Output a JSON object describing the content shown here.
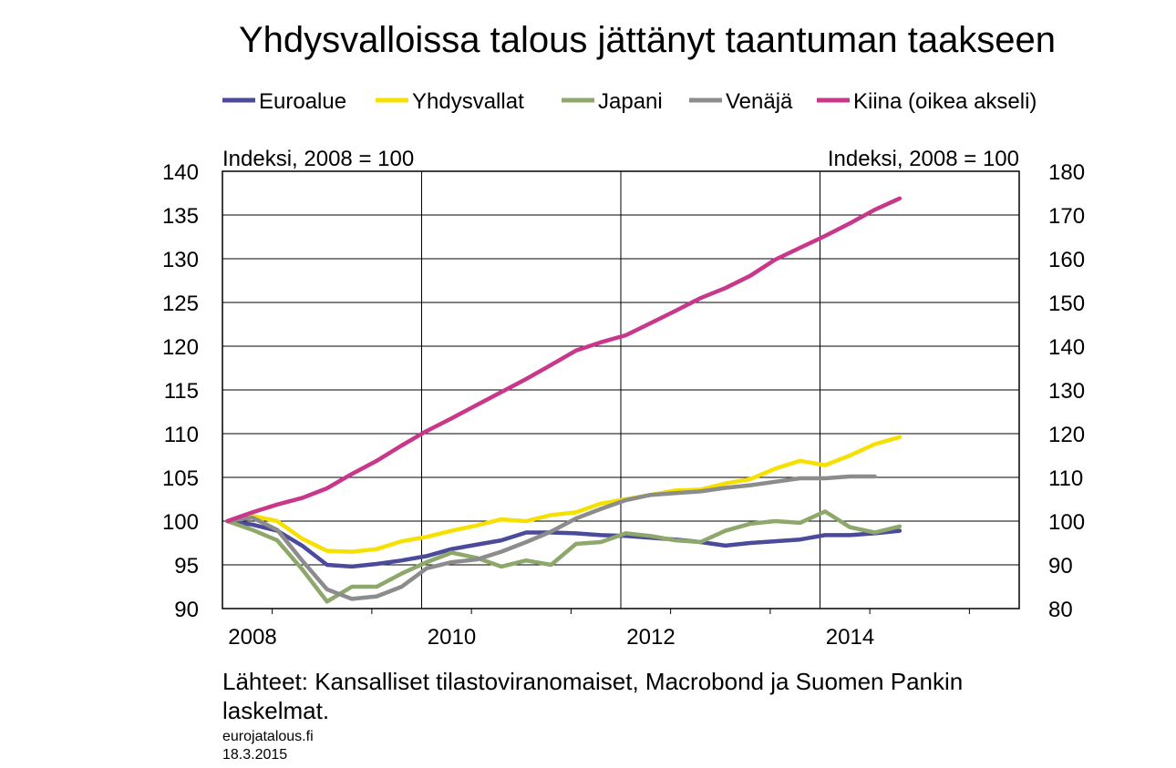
{
  "chart_data": {
    "type": "line",
    "title": "Yhdysvalloissa talous jättänyt taantuman taakseen",
    "left_axis_label": "Indeksi, 2008 = 100",
    "right_axis_label": "Indeksi, 2008 = 100",
    "ylim_left": [
      90,
      140
    ],
    "yticks_left": [
      "90",
      "95",
      "100",
      "105",
      "110",
      "115",
      "120",
      "125",
      "130",
      "135",
      "140"
    ],
    "ylim_right": [
      80,
      180
    ],
    "yticks_right": [
      "80",
      "90",
      "100",
      "110",
      "120",
      "130",
      "140",
      "150",
      "160",
      "170",
      "180"
    ],
    "xlim": [
      2008,
      2016
    ],
    "xtick_labels": [
      "2008",
      "2010",
      "2012",
      "2014"
    ],
    "grid": true,
    "legend_position": "top",
    "series": [
      {
        "name": "Euroalue",
        "color": "#4b4a9b",
        "axis": "left",
        "x": [
          2008.0,
          2008.25,
          2008.5,
          2008.75,
          2009.0,
          2009.25,
          2009.5,
          2009.75,
          2010.0,
          2010.25,
          2010.5,
          2010.75,
          2011.0,
          2011.25,
          2011.5,
          2011.75,
          2012.0,
          2012.25,
          2012.5,
          2012.75,
          2013.0,
          2013.25,
          2013.5,
          2013.75,
          2014.0,
          2014.25,
          2014.5,
          2014.75
        ],
        "values": [
          100.0,
          99.6,
          98.9,
          97.2,
          95.0,
          94.8,
          95.1,
          95.5,
          96.0,
          96.8,
          97.3,
          97.8,
          98.7,
          98.7,
          98.6,
          98.4,
          98.3,
          98.1,
          97.9,
          97.6,
          97.2,
          97.5,
          97.7,
          97.9,
          98.4,
          98.4,
          98.6,
          98.9
        ]
      },
      {
        "name": "Yhdysvallat",
        "color": "#f6e000",
        "axis": "left",
        "x": [
          2008.0,
          2008.25,
          2008.5,
          2008.75,
          2009.0,
          2009.25,
          2009.5,
          2009.75,
          2010.0,
          2010.25,
          2010.5,
          2010.75,
          2011.0,
          2011.25,
          2011.5,
          2011.75,
          2012.0,
          2012.25,
          2012.5,
          2012.75,
          2013.0,
          2013.25,
          2013.5,
          2013.75,
          2014.0,
          2014.25,
          2014.5,
          2014.75
        ],
        "values": [
          100.0,
          100.6,
          100.0,
          98.0,
          96.6,
          96.5,
          96.8,
          97.7,
          98.2,
          98.9,
          99.5,
          100.2,
          100.0,
          100.7,
          101.0,
          102.0,
          102.5,
          103.0,
          103.5,
          103.6,
          104.3,
          104.8,
          106.0,
          106.9,
          106.4,
          107.5,
          108.8,
          109.6
        ]
      },
      {
        "name": "Japani",
        "color": "#8ea86b",
        "axis": "left",
        "x": [
          2008.0,
          2008.25,
          2008.5,
          2008.75,
          2009.0,
          2009.25,
          2009.5,
          2009.75,
          2010.0,
          2010.25,
          2010.5,
          2010.75,
          2011.0,
          2011.25,
          2011.5,
          2011.75,
          2012.0,
          2012.25,
          2012.5,
          2012.75,
          2013.0,
          2013.25,
          2013.5,
          2013.75,
          2014.0,
          2014.25,
          2014.5,
          2014.75
        ],
        "values": [
          100.0,
          99.0,
          97.8,
          94.5,
          90.8,
          92.5,
          92.5,
          94.0,
          95.3,
          96.4,
          95.8,
          94.8,
          95.5,
          95.0,
          97.4,
          97.6,
          98.6,
          98.3,
          97.8,
          97.6,
          98.9,
          99.7,
          100.0,
          99.8,
          101.1,
          99.3,
          98.7,
          99.4
        ]
      },
      {
        "name": "Venäjä",
        "color": "#8c8c8c",
        "axis": "left",
        "x": [
          2008.0,
          2008.25,
          2008.5,
          2008.75,
          2009.0,
          2009.25,
          2009.5,
          2009.75,
          2010.0,
          2010.25,
          2010.5,
          2010.75,
          2011.0,
          2011.25,
          2011.5,
          2011.75,
          2012.0,
          2012.25,
          2012.5,
          2012.75,
          2013.0,
          2013.25,
          2013.5,
          2013.75,
          2014.0,
          2014.25,
          2014.5
        ],
        "values": [
          100.0,
          100.4,
          99.0,
          95.5,
          92.2,
          91.1,
          91.4,
          92.5,
          94.6,
          95.3,
          95.6,
          96.5,
          97.6,
          98.8,
          100.3,
          101.4,
          102.4,
          103.0,
          103.2,
          103.4,
          103.8,
          104.1,
          104.5,
          104.9,
          104.9,
          105.1,
          105.1
        ]
      },
      {
        "name": "Kiina (oikea akseli)",
        "color": "#c8378a",
        "axis": "right",
        "x": [
          2008.0,
          2008.25,
          2008.5,
          2008.75,
          2009.0,
          2009.25,
          2009.5,
          2009.75,
          2010.0,
          2010.25,
          2010.5,
          2010.75,
          2011.0,
          2011.25,
          2011.5,
          2011.75,
          2012.0,
          2012.25,
          2012.5,
          2012.75,
          2013.0,
          2013.25,
          2013.5,
          2013.75,
          2014.0,
          2014.25,
          2014.5,
          2014.75
        ],
        "values": [
          100.0,
          102.0,
          103.8,
          105.3,
          107.5,
          110.8,
          113.8,
          117.3,
          120.6,
          123.5,
          126.5,
          129.5,
          132.5,
          135.7,
          139.0,
          140.9,
          142.5,
          145.3,
          148.1,
          151.0,
          153.3,
          156.1,
          159.8,
          162.5,
          165.2,
          168.1,
          171.2,
          173.8
        ]
      }
    ]
  },
  "source": "Lähteet: Kansalliset tilastoviranomaiset, Macrobond ja Suomen Pankin laskelmat.",
  "site": "eurojatalous.fi",
  "date": "18.3.2015"
}
